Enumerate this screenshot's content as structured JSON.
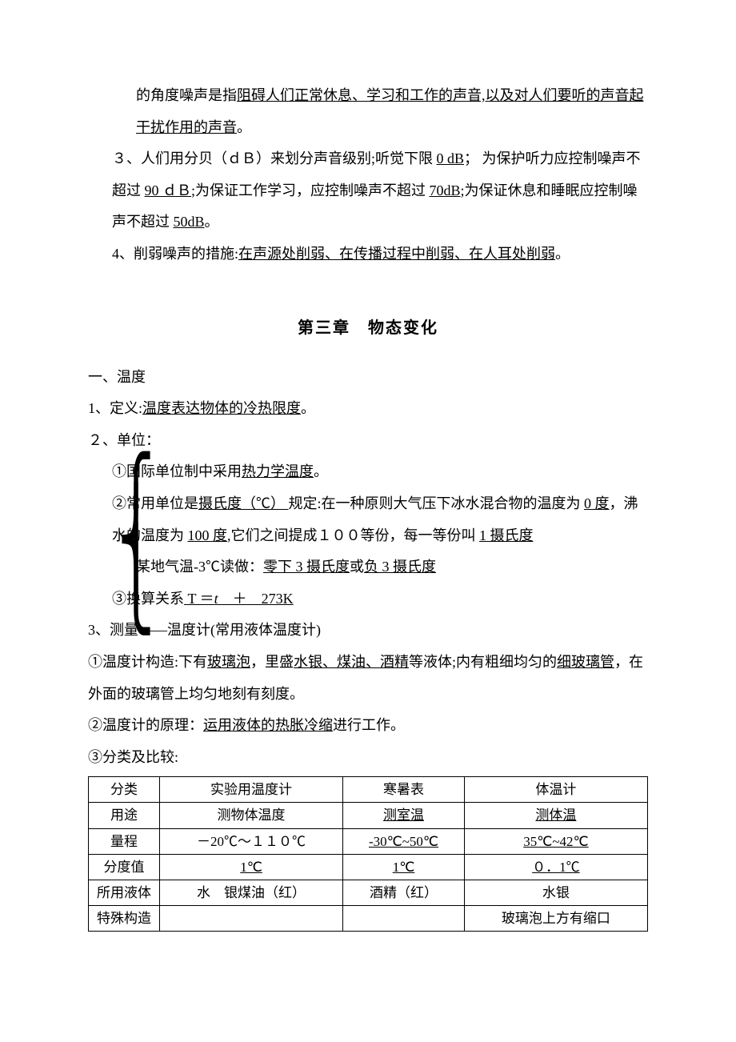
{
  "top": {
    "line1a": "的角度噪声是指",
    "line1b": "阻碍人们正常休息、学习和工作的声音,以及对人们要听的声音起干扰作用的声音",
    "line1c": "。",
    "item3a": "３、人们用分贝（ｄＢ）来划分声音级别;听觉下限 ",
    "item3b": "0 dB",
    "item3c": "； 为保护听力应控制噪声不超过 ",
    "item3d": "90 ｄＢ",
    "item3e": ";为保证工作学习，应控制噪声不超过 ",
    "item3f": "70dB",
    "item3g": ";为保证休息和睡眠应控制噪声不超过 ",
    "item3h": "50dB",
    "item3i": "。",
    "item4a": "4、削弱噪声的措施:",
    "item4b": "在声源处削弱、在传播过程中削弱、在人耳处削弱",
    "item4c": "。"
  },
  "chapter": "第三章　物态变化",
  "sec1": {
    "head": "一、温度",
    "def_a": "1、定义:",
    "def_b": "温度表达物体的冷热限度",
    "def_c": "。",
    "unit_head": "２、单位：",
    "u1a": "①国际单位制中采用",
    "u1b": "热力学温度",
    "u1c": "。",
    "u2a": "②常用单位是",
    "u2b": "摄氏度（℃） ",
    "u2c": "规定:在一种原则大气压下冰水混合物的温度为 ",
    "u2d": "0 度",
    "u2e": "，沸水的温度为 ",
    "u2f": "100 度",
    "u2g": ",它们之间提成１００等份，每一等份叫 ",
    "u2h": "1 摄氏度",
    "u2i": "某地气温-3℃读做：",
    "u2j": "零下 3 摄氏度",
    "u2k": "或",
    "u2l": "负 3 摄氏度",
    "u3a": "③换算关系",
    "u3b": " T ＝",
    "u3c": "t",
    "u3d": "　＋　273K",
    "meas_head": "3、测量——温度计(常用液体温度计)",
    "m1a": "①温度计构造:下有",
    "m1b": "玻璃泡",
    "m1c": "，里盛",
    "m1d": "水银、煤油、酒精",
    "m1e": "等液体;内有粗细均匀的",
    "m1f": "细玻璃管",
    "m1g": "，在外面的玻璃管上均匀地刻有刻度。",
    "m2a": "②温度计的原理：",
    "m2b": "运用液体的热胀冷缩",
    "m2c": "进行工作。",
    "m3": "③分类及比较:"
  },
  "table": {
    "rows": [
      {
        "h": "分类",
        "c1": "实验用温度计",
        "c2": "寒暑表",
        "c3": "体温计",
        "ul": [
          false,
          false,
          false
        ]
      },
      {
        "h": "用途",
        "c1": "测物体温度",
        "c2": "测室温",
        "c3": "测体温",
        "ul": [
          false,
          true,
          true
        ]
      },
      {
        "h": "量程",
        "c1": "－20℃～１１０℃",
        "c2": "-30℃~50℃",
        "c3": "35℃~42℃",
        "ul": [
          false,
          true,
          true
        ]
      },
      {
        "h": "分度值",
        "c1": "1℃",
        "c2": "1℃",
        "c3": "０．1℃",
        "ul": [
          true,
          true,
          true
        ]
      },
      {
        "h": "所用液体",
        "c1": "水　银煤油（红）",
        "c2": "酒精（红）",
        "c3": "水银",
        "ul": [
          false,
          false,
          false
        ]
      },
      {
        "h": "特殊构造",
        "c1": "",
        "c2": "",
        "c3": "玻璃泡上方有缩口",
        "ul": [
          false,
          false,
          false
        ]
      }
    ]
  }
}
